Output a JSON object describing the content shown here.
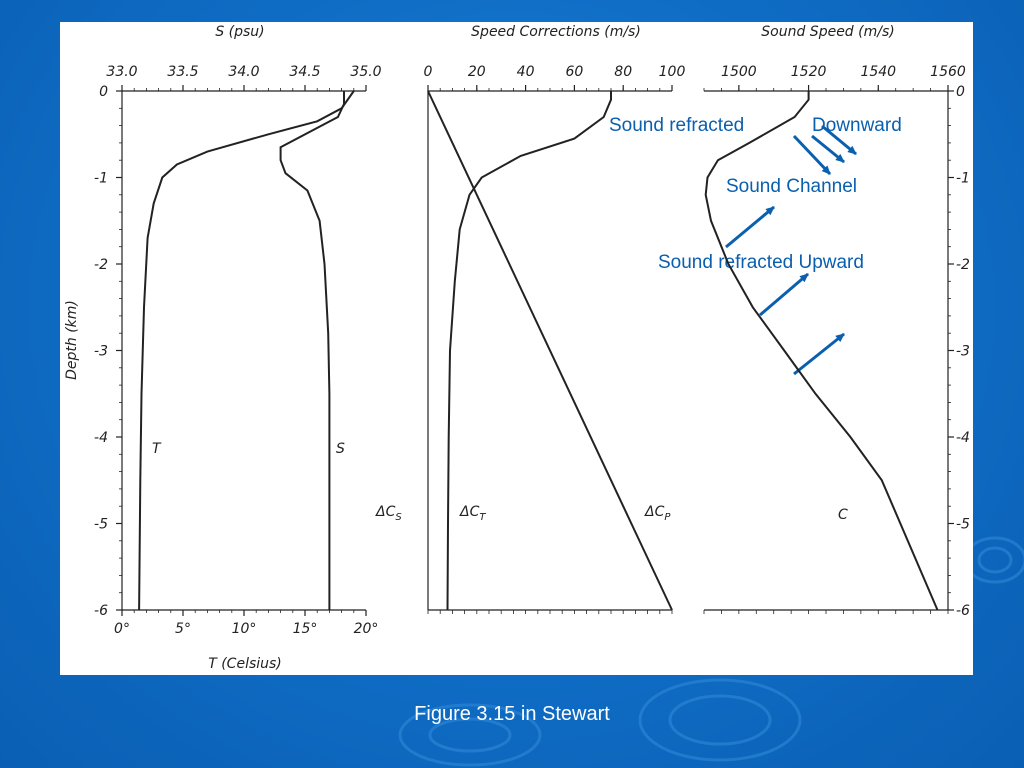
{
  "caption": "Figure 3.15 in Stewart",
  "colors": {
    "background": "#0f6cc4",
    "annotation": "#0a5fae",
    "curve": "#222222"
  },
  "chart_data": [
    {
      "type": "line",
      "title": "",
      "top_axis_label": "S (psu)",
      "bottom_axis_label": "T (Celsius)",
      "ylabel": "Depth (km)",
      "ylim": [
        -6,
        0
      ],
      "y_ticks": [
        "0",
        "-1",
        "-2",
        "-3",
        "-4",
        "-5",
        "-6"
      ],
      "top_ticks": [
        "33.0",
        "33.5",
        "34.0",
        "34.5",
        "35.0"
      ],
      "top_lim": [
        33.0,
        35.0
      ],
      "bottom_ticks": [
        "0°",
        "5°",
        "10°",
        "15°",
        "20°"
      ],
      "bottom_lim": [
        0,
        20
      ],
      "series": [
        {
          "name": "T",
          "axis": "bottom",
          "x": [
            19.0,
            18.0,
            16.0,
            12.0,
            7.0,
            4.5,
            3.3,
            2.6,
            2.1,
            1.8,
            1.6,
            1.5,
            1.4
          ],
          "y": [
            0,
            -0.2,
            -0.35,
            -0.5,
            -0.7,
            -0.85,
            -1.0,
            -1.3,
            -1.7,
            -2.5,
            -3.5,
            -4.5,
            -6.0
          ]
        },
        {
          "name": "S",
          "axis": "top",
          "x": [
            34.82,
            34.82,
            34.77,
            34.3,
            34.3,
            34.34,
            34.52,
            34.62,
            34.66,
            34.69,
            34.7,
            34.7,
            34.7
          ],
          "y": [
            0,
            -0.15,
            -0.3,
            -0.65,
            -0.8,
            -0.95,
            -1.15,
            -1.5,
            -2.0,
            -2.8,
            -3.5,
            -4.5,
            -6.0
          ]
        }
      ],
      "series_labels": [
        "T",
        "S"
      ]
    },
    {
      "type": "line",
      "title": "",
      "top_axis_label": "Speed Corrections (m/s)",
      "top_ticks": [
        "0",
        "20",
        "40",
        "60",
        "80",
        "100"
      ],
      "xlim": [
        0,
        100
      ],
      "ylim": [
        -6,
        0
      ],
      "series": [
        {
          "name": "ΔC_S",
          "x": [],
          "y": []
        },
        {
          "name": "ΔC_T",
          "x": [
            75,
            75,
            72,
            60,
            38,
            22,
            17,
            13,
            11,
            9,
            8.5,
            8.2,
            8
          ],
          "y": [
            0,
            -0.1,
            -0.3,
            -0.55,
            -0.75,
            -1.0,
            -1.2,
            -1.6,
            -2.2,
            -3.0,
            -4.0,
            -5.0,
            -6.0
          ]
        },
        {
          "name": "ΔC_P",
          "x": [
            0,
            100
          ],
          "y": [
            0,
            -6.0
          ]
        }
      ],
      "series_labels": [
        "ΔC",
        "S",
        "ΔC",
        "T",
        "ΔC",
        "P"
      ]
    },
    {
      "type": "line",
      "title": "",
      "top_axis_label": "Sound Speed (m/s)",
      "top_ticks": [
        "1500",
        "1520",
        "1540",
        "1560"
      ],
      "xlim": [
        1490,
        1560
      ],
      "ylim": [
        -6,
        0
      ],
      "y_ticks_right": [
        "0",
        "-1",
        "-2",
        "-3",
        "-4",
        "-5",
        "-6"
      ],
      "series": [
        {
          "name": "C",
          "x": [
            1520,
            1520,
            1516,
            1503,
            1494,
            1491,
            1490.5,
            1492,
            1497,
            1504,
            1513,
            1522,
            1532,
            1541,
            1557
          ],
          "y": [
            0,
            -0.1,
            -0.3,
            -0.6,
            -0.8,
            -1.0,
            -1.2,
            -1.5,
            -2.0,
            -2.5,
            -3.0,
            -3.5,
            -4.0,
            -4.5,
            -6.0
          ]
        }
      ],
      "series_labels": [
        "C"
      ],
      "annotations": [
        "Sound refracted",
        "Downward",
        "Sound Channel",
        "Sound refracted Upward"
      ]
    }
  ]
}
